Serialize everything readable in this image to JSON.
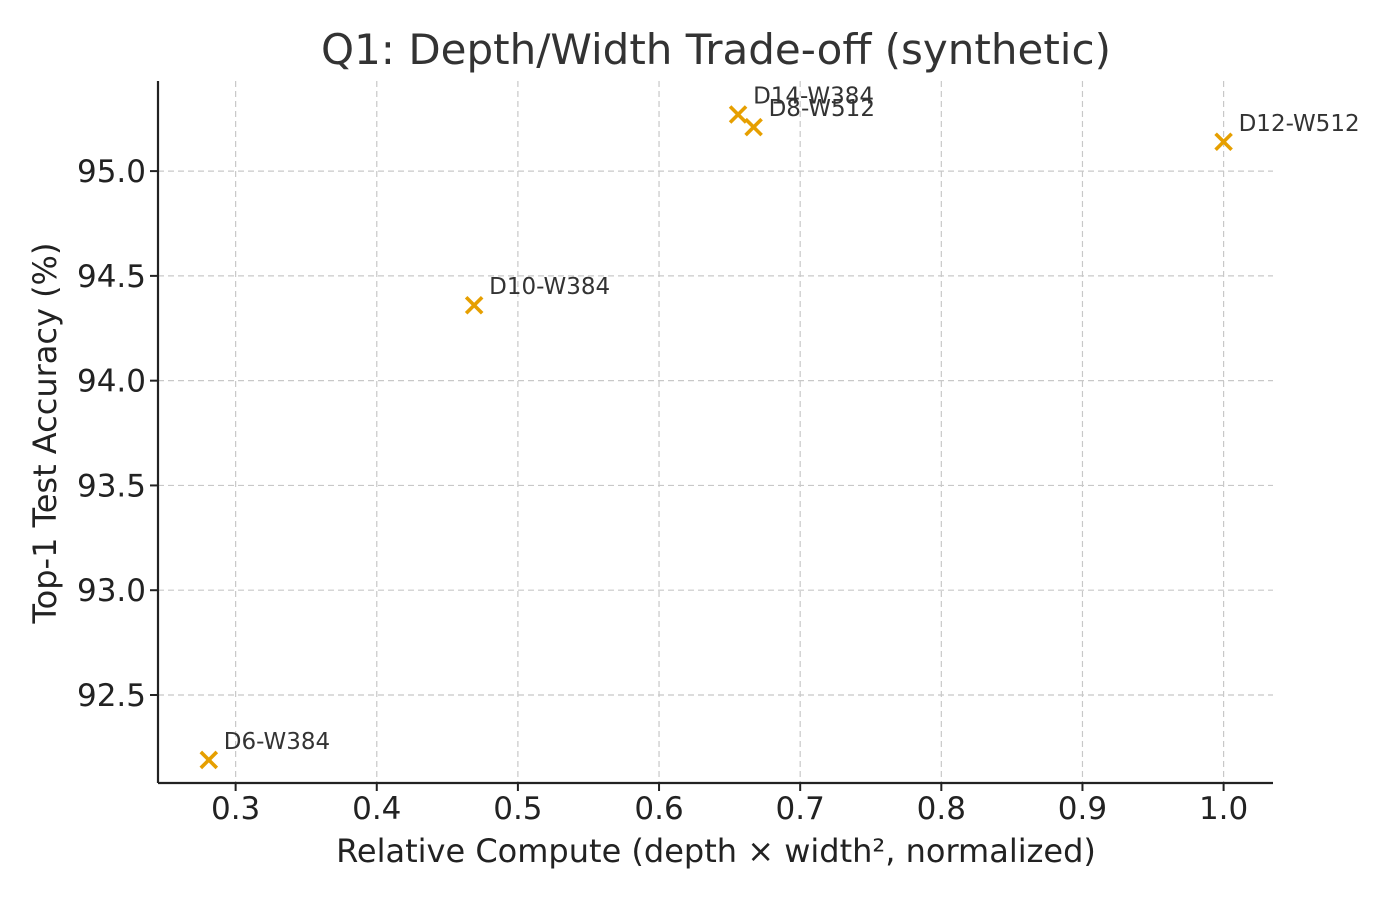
{
  "chart_data": {
    "type": "scatter",
    "title": "Q1: Depth/Width Trade-off (synthetic)",
    "xlabel": "Relative Compute (depth × width², normalized)",
    "ylabel": "Top-1 Test Accuracy (%)",
    "xlim": [
      0.245,
      1.035
    ],
    "ylim": [
      92.08,
      95.43
    ],
    "x_ticks": [
      0.3,
      0.4,
      0.5,
      0.6,
      0.7,
      0.8,
      0.9,
      1.0
    ],
    "x_tick_labels": [
      "0.3",
      "0.4",
      "0.5",
      "0.6",
      "0.7",
      "0.8",
      "0.9",
      "1.0"
    ],
    "y_ticks": [
      92.5,
      93.0,
      93.5,
      94.0,
      94.5,
      95.0
    ],
    "y_tick_labels": [
      "92.5",
      "93.0",
      "93.5",
      "94.0",
      "94.5",
      "95.0"
    ],
    "grid": true,
    "marker": "x",
    "marker_color": "#E69F00",
    "points": [
      {
        "label": "D6-W384",
        "x": 0.281,
        "y": 92.19
      },
      {
        "label": "D10-W384",
        "x": 0.469,
        "y": 94.36
      },
      {
        "label": "D14-W384",
        "x": 0.656,
        "y": 95.27
      },
      {
        "label": "D8-W512",
        "x": 0.667,
        "y": 95.21
      },
      {
        "label": "D12-W512",
        "x": 1.0,
        "y": 95.14
      }
    ]
  }
}
